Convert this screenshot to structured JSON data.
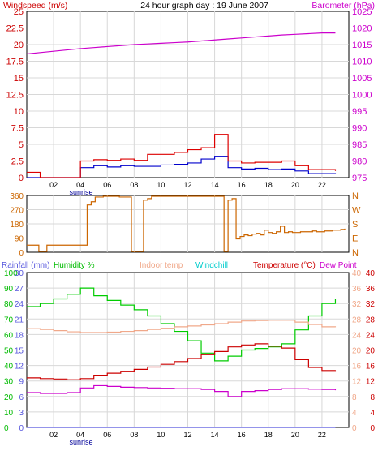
{
  "title": "24 hour graph day : 19 June 2007",
  "top_panel": {
    "left_label": "Windspeed (m/s)",
    "right_label": "Barometer (hPa)",
    "left_ticks": [
      "0",
      "2.5",
      "5",
      "7.5",
      "10",
      "12.5",
      "15",
      "17.5",
      "20",
      "22.5",
      "25"
    ],
    "right_ticks": [
      "975",
      "980",
      "985",
      "990",
      "995",
      "1000",
      "1005",
      "1010",
      "1015",
      "1020",
      "1025"
    ]
  },
  "middle_panel": {
    "left_ticks": [
      "0",
      "90",
      "180",
      "270",
      "360"
    ],
    "right_ticks": [
      "N",
      "E",
      "S",
      "W",
      "N"
    ]
  },
  "bottom_panel": {
    "rainfall_label": "Rainfall (mm)",
    "humidity_label": "Humidity %",
    "indoor_label": "Indoor temp",
    "windchill_label": "Windchill",
    "temperature_label": "Temperature (°C)",
    "dewpoint_label": "Dew Point",
    "humidity_ticks": [
      "0",
      "10",
      "20",
      "30",
      "40",
      "50",
      "60",
      "70",
      "80",
      "90",
      "100"
    ],
    "rain_ticks": [
      "0",
      "3",
      "6",
      "9",
      "12",
      "15",
      "18",
      "21",
      "24",
      "27",
      "30"
    ],
    "temp_ticks_a": [
      "0",
      "4",
      "8",
      "12",
      "16",
      "20",
      "24",
      "28",
      "32",
      "36",
      "40"
    ],
    "temp_ticks_b": [
      "0",
      "4",
      "8",
      "12",
      "16",
      "20",
      "24",
      "28",
      "32",
      "36",
      "40"
    ]
  },
  "x_ticks": [
    "02",
    "04",
    "06",
    "08",
    "10",
    "12",
    "14",
    "16",
    "18",
    "20",
    "22"
  ],
  "sunrise_label": "sunrise",
  "colors": {
    "wind_avg": "#0000cc",
    "wind_gust": "#dd0000",
    "barometer": "#cc00cc",
    "direction": "#cc6600",
    "humidity": "#00cc00",
    "indoor": "#f0a88a",
    "windchill": "#00cccc",
    "temperature": "#cc0000",
    "dewpoint": "#cc00cc",
    "rainfall": "#5555dd",
    "sunrise": "#000099"
  },
  "chart_data": [
    {
      "type": "line",
      "title": "24 hour graph day : 19 June 2007",
      "x": [
        0,
        1,
        2,
        3,
        4,
        5,
        6,
        7,
        8,
        9,
        10,
        11,
        12,
        13,
        14,
        15,
        16,
        17,
        18,
        19,
        20,
        21,
        22,
        23
      ],
      "series": [
        {
          "name": "Windspeed (m/s)",
          "axis": "left",
          "values": [
            0,
            0,
            0,
            0,
            1.5,
            1.8,
            1.6,
            1.8,
            1.7,
            1.7,
            1.9,
            2,
            2.2,
            2.8,
            3.2,
            1.5,
            1.3,
            1.4,
            1.2,
            1.3,
            1,
            0.6,
            0.6,
            0.5
          ]
        },
        {
          "name": "Gust",
          "axis": "left",
          "values": [
            0.8,
            0,
            0,
            0,
            2.5,
            2.7,
            2.6,
            2.8,
            2.6,
            3.5,
            3.5,
            3.8,
            4.2,
            4.5,
            6.5,
            2.5,
            2.2,
            2.3,
            2.3,
            2.5,
            1.8,
            1.2,
            1.2,
            1
          ]
        },
        {
          "name": "Barometer (hPa)",
          "axis": "right",
          "values": [
            1012.2,
            1012.6,
            1013,
            1013.4,
            1013.8,
            1014.1,
            1014.4,
            1014.7,
            1015,
            1015.2,
            1015.4,
            1015.6,
            1015.8,
            1016.1,
            1016.4,
            1016.7,
            1017,
            1017.3,
            1017.6,
            1017.9,
            1018.1,
            1018.3,
            1018.5,
            1018.5
          ]
        }
      ],
      "ylim_left": [
        0,
        25
      ],
      "ylim_right": [
        975,
        1025
      ]
    },
    {
      "type": "line",
      "x": [
        0,
        0.3,
        0.6,
        0.9,
        1.2,
        1.5,
        1.8,
        2.1,
        2.4,
        2.7,
        3,
        3.3,
        3.6,
        3.9,
        4.2,
        4.5,
        4.8,
        5.1,
        5.4,
        5.7,
        6,
        6.3,
        6.6,
        6.9,
        7.2,
        7.5,
        7.8,
        8.1,
        8.4,
        8.7,
        9,
        9.3,
        9.6,
        9.9,
        10.2,
        10.5,
        10.8,
        11.1,
        11.4,
        11.7,
        12,
        12.3,
        12.6,
        12.9,
        13.2,
        13.5,
        13.8,
        14.1,
        14.4,
        14.7,
        15,
        15.3,
        15.6,
        15.9,
        16.2,
        16.5,
        16.8,
        17.1,
        17.4,
        17.7,
        18,
        18.3,
        18.6,
        18.9,
        19.2,
        19.5,
        19.8,
        20.1,
        20.4,
        20.7,
        21,
        21.3,
        21.6,
        21.9,
        22.2,
        22.5,
        22.8,
        23.1,
        23.4,
        23.7
      ],
      "series": [
        {
          "name": "Wind direction",
          "values": [
            45,
            45,
            45,
            5,
            5,
            45,
            45,
            45,
            45,
            45,
            45,
            45,
            45,
            45,
            45,
            300,
            320,
            350,
            350,
            355,
            355,
            355,
            355,
            350,
            350,
            350,
            5,
            5,
            5,
            330,
            340,
            355,
            355,
            355,
            355,
            355,
            355,
            355,
            355,
            355,
            355,
            355,
            355,
            355,
            355,
            355,
            355,
            355,
            355,
            5,
            330,
            340,
            85,
            100,
            110,
            105,
            115,
            120,
            110,
            140,
            125,
            120,
            130,
            165,
            125,
            130,
            125,
            125,
            130,
            130,
            130,
            135,
            130,
            130,
            135,
            135,
            140,
            140,
            145,
            150
          ]
        }
      ],
      "ylim": [
        0,
        360
      ]
    },
    {
      "type": "line",
      "x": [
        0,
        1,
        2,
        3,
        4,
        5,
        6,
        7,
        8,
        9,
        10,
        11,
        12,
        13,
        14,
        15,
        16,
        17,
        18,
        19,
        20,
        21,
        22,
        23
      ],
      "series": [
        {
          "name": "Humidity %",
          "axis": "humidity",
          "values": [
            78,
            80,
            83,
            86,
            90,
            85,
            82,
            79,
            76,
            72,
            67,
            62,
            56,
            48,
            43,
            46,
            50,
            51,
            52,
            54,
            63,
            72,
            80,
            83
          ]
        },
        {
          "name": "Indoor temp",
          "axis": "temp",
          "values": [
            25.5,
            25.3,
            25,
            24.7,
            24.5,
            24.5,
            24.6,
            24.8,
            25,
            25.3,
            25.6,
            26,
            26.2,
            26.5,
            26.8,
            27.2,
            27.5,
            27.6,
            27.7,
            27.7,
            27.2,
            26.6,
            26,
            25.9
          ]
        },
        {
          "name": "Temperature (°C)",
          "axis": "temp",
          "values": [
            12.8,
            12.6,
            12.5,
            12.3,
            12.6,
            13.5,
            14,
            14.5,
            15,
            15.6,
            16.3,
            17,
            17.8,
            18.8,
            19.6,
            20.8,
            21.3,
            21.6,
            21,
            20.5,
            17.5,
            15.5,
            14.7,
            14.8
          ]
        },
        {
          "name": "Dew Point",
          "axis": "temp",
          "values": [
            9,
            8.8,
            8.8,
            9,
            10.2,
            10.8,
            10.6,
            10.4,
            10.3,
            10.2,
            10.1,
            10,
            10,
            9.8,
            9.3,
            8,
            9.3,
            9.5,
            9.8,
            10,
            10,
            9.9,
            9.8,
            9.6
          ]
        },
        {
          "name": "Rainfall (mm)",
          "axis": "rain",
          "values": [
            0,
            0,
            0,
            0,
            0,
            0,
            0,
            0,
            0,
            0,
            0,
            0,
            0,
            0,
            0,
            0,
            0,
            0,
            0,
            0,
            0,
            0,
            0,
            0
          ]
        }
      ],
      "ylim_humidity": [
        0,
        100
      ],
      "ylim_rain": [
        0,
        30
      ],
      "ylim_temp": [
        0,
        40
      ]
    }
  ]
}
